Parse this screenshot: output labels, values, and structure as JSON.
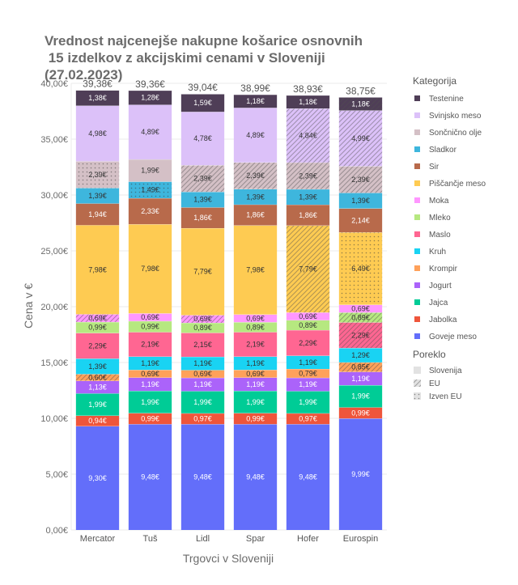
{
  "chart_data": {
    "type": "bar",
    "stacked": true,
    "title_lines": [
      "Vrednost najcenejše nakupne košarice osnovnih",
      " 15 izdelkov z akcijskimi cenami v Sloveniji",
      "(27.02.2023)"
    ],
    "xlabel": "Trgovci v Sloveniji",
    "ylabel": "Cena v €",
    "ylim": [
      0,
      40
    ],
    "yticks": [
      "0,00€",
      "5,00€",
      "10,00€",
      "15,00€",
      "20,00€",
      "25,00€",
      "30,00€",
      "35,00€",
      "40,00€"
    ],
    "categories": [
      "Mercator",
      "Tuš",
      "Lidl",
      "Spar",
      "Hofer",
      "Eurospin"
    ],
    "totals": [
      "39,38€",
      "39,36€",
      "39,04€",
      "38,99€",
      "38,93€",
      "38,75€"
    ],
    "series": [
      {
        "name": "Goveje meso",
        "color": "#636efa",
        "values": [
          9.3,
          9.48,
          9.48,
          9.48,
          9.48,
          9.99
        ],
        "labels": [
          "9,30€",
          "9,48€",
          "9,48€",
          "9,48€",
          "9,48€",
          "9,99€"
        ],
        "origin": [
          "slo",
          "slo",
          "slo",
          "slo",
          "slo",
          "slo"
        ]
      },
      {
        "name": "Jabolka",
        "color": "#ef553b",
        "values": [
          0.94,
          0.99,
          0.97,
          0.99,
          0.97,
          0.99
        ],
        "labels": [
          "0,94€",
          "0,99€",
          "0,97€",
          "0,99€",
          "0,97€",
          "0,99€"
        ],
        "origin": [
          "slo",
          "slo",
          "slo",
          "slo",
          "slo",
          "slo"
        ]
      },
      {
        "name": "Jajca",
        "color": "#00cc96",
        "values": [
          1.99,
          1.99,
          1.99,
          1.99,
          1.99,
          1.99
        ],
        "labels": [
          "1,99€",
          "1,99€",
          "1,99€",
          "1,99€",
          "1,99€",
          "1,99€"
        ],
        "origin": [
          "slo",
          "slo",
          "slo",
          "slo",
          "slo",
          "slo"
        ]
      },
      {
        "name": "Jogurt",
        "color": "#ab63fa",
        "values": [
          1.13,
          1.19,
          1.19,
          1.19,
          1.19,
          1.19
        ],
        "labels": [
          "1,13€",
          "1,19€",
          "1,19€",
          "1,19€",
          "1,19€",
          "1,19€"
        ],
        "origin": [
          "slo",
          "slo",
          "slo",
          "slo",
          "slo",
          "slo"
        ]
      },
      {
        "name": "Krompir",
        "color": "#ffa15a",
        "values": [
          0.6,
          0.69,
          0.69,
          0.69,
          0.79,
          0.85
        ],
        "labels": [
          "0,60€",
          "0,69€",
          "0,69€",
          "0,69€",
          "0,79€",
          "0,85€"
        ],
        "origin": [
          "eu",
          "slo",
          "slo",
          "slo",
          "slo",
          "eu"
        ]
      },
      {
        "name": "Kruh",
        "color": "#19d3f3",
        "values": [
          1.39,
          1.19,
          1.19,
          1.19,
          1.19,
          1.29
        ],
        "labels": [
          "1,39€",
          "1,19€",
          "1,19€",
          "1,19€",
          "1,19€",
          "1,29€"
        ],
        "origin": [
          "slo",
          "slo",
          "slo",
          "slo",
          "slo",
          "slo"
        ]
      },
      {
        "name": "Maslo",
        "color": "#ff6692",
        "values": [
          2.29,
          2.19,
          2.15,
          2.19,
          2.29,
          2.29
        ],
        "labels": [
          "2,29€",
          "2,19€",
          "2,15€",
          "2,19€",
          "2,29€",
          "2,29€"
        ],
        "origin": [
          "slo",
          "slo",
          "slo",
          "slo",
          "slo",
          "eu"
        ]
      },
      {
        "name": "Mleko",
        "color": "#b6e880",
        "values": [
          0.99,
          0.99,
          0.89,
          0.89,
          0.89,
          0.89
        ],
        "labels": [
          "0,99€",
          "0,99€",
          "0,89€",
          "0,89€",
          "0,89€",
          "0,89€"
        ],
        "origin": [
          "slo",
          "slo",
          "slo",
          "slo",
          "slo",
          "eu"
        ]
      },
      {
        "name": "Moka",
        "color": "#ff97ff",
        "values": [
          0.69,
          0.69,
          0.69,
          0.69,
          0.69,
          0.69
        ],
        "labels": [
          "0,69€",
          "0,69€",
          "0,69€",
          "0,69€",
          "0,69€",
          "0,69€"
        ],
        "origin": [
          "eu",
          "slo",
          "eu",
          "slo",
          "slo",
          "slo"
        ]
      },
      {
        "name": "Piščančje meso",
        "color": "#fecb52",
        "values": [
          7.98,
          7.98,
          7.79,
          7.98,
          7.79,
          6.49
        ],
        "labels": [
          "7,98€",
          "7,98€",
          "7,79€",
          "7,98€",
          "7,79€",
          "6,49€"
        ],
        "origin": [
          "slo",
          "slo",
          "slo",
          "slo",
          "eu",
          "izven"
        ]
      },
      {
        "name": "Sir",
        "color": "#b86a4b",
        "values": [
          1.94,
          2.33,
          1.86,
          1.86,
          1.86,
          2.14
        ],
        "labels": [
          "1,94€",
          "2,33€",
          "1,86€",
          "1,86€",
          "1,86€",
          "2,14€"
        ],
        "origin": [
          "slo",
          "slo",
          "slo",
          "slo",
          "slo",
          "slo"
        ]
      },
      {
        "name": "Sladkor",
        "color": "#3eb6dd",
        "values": [
          1.39,
          1.49,
          1.39,
          1.39,
          1.39,
          1.39
        ],
        "labels": [
          "1,39€",
          "1,49€",
          "1,39€",
          "1,39€",
          "1,39€",
          "1,39€"
        ],
        "origin": [
          "slo",
          "izven",
          "slo",
          "slo",
          "slo",
          "slo"
        ]
      },
      {
        "name": "Sončnično olje",
        "color": "#d4c0c6",
        "values": [
          2.39,
          1.99,
          2.39,
          2.39,
          2.39,
          2.39
        ],
        "labels": [
          "2,39€",
          "1,99€",
          "2,39€",
          "2,39€",
          "2,39€",
          "2,39€"
        ],
        "origin": [
          "izven",
          "slo",
          "eu",
          "eu",
          "eu",
          "eu"
        ]
      },
      {
        "name": "Svinjsko meso",
        "color": "#dcc1f9",
        "values": [
          4.98,
          4.89,
          4.78,
          4.89,
          4.84,
          4.99
        ],
        "labels": [
          "4,98€",
          "4,89€",
          "4,78€",
          "4,89€",
          "4,84€",
          "4,99€"
        ],
        "origin": [
          "slo",
          "slo",
          "slo",
          "slo",
          "eu",
          "eu"
        ]
      },
      {
        "name": "Testenine",
        "color": "#4f3e57",
        "values": [
          1.38,
          1.28,
          1.59,
          1.18,
          1.18,
          1.18
        ],
        "labels": [
          "1,38€",
          "1,28€",
          "1,59€",
          "1,18€",
          "1,18€",
          "1,18€"
        ],
        "origin": [
          "slo",
          "slo",
          "slo",
          "slo",
          "slo",
          "eu"
        ]
      }
    ],
    "legend": {
      "title": "Kategorija",
      "placement": "right",
      "order": [
        "Testenine",
        "Svinjsko meso",
        "Sončnično olje",
        "Sladkor",
        "Sir",
        "Piščančje meso",
        "Moka",
        "Mleko",
        "Maslo",
        "Kruh",
        "Krompir",
        "Jogurt",
        "Jajca",
        "Jabolka",
        "Goveje meso"
      ],
      "origin_title": "Poreklo",
      "origin_items": [
        {
          "key": "slo",
          "name": "Slovenija"
        },
        {
          "key": "eu",
          "name": "EU"
        },
        {
          "key": "izven",
          "name": "Izven EU"
        }
      ]
    },
    "grid": true
  }
}
